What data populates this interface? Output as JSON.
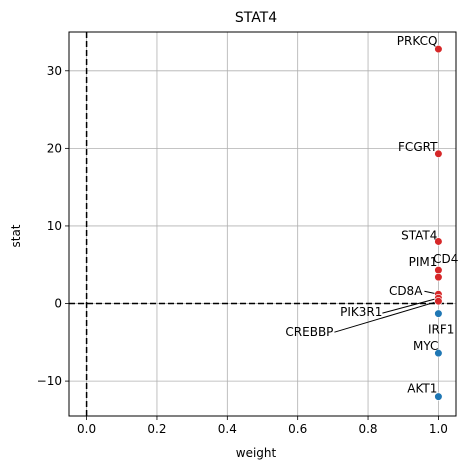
{
  "chart_data": {
    "type": "scatter",
    "title": "STAT4",
    "xlabel": "weight",
    "ylabel": "stat",
    "xlim": [
      -0.05,
      1.05
    ],
    "ylim": [
      -14.5,
      35
    ],
    "xticks": [
      0.0,
      0.2,
      0.4,
      0.6,
      0.8,
      1.0
    ],
    "xtick_labels": [
      "0.0",
      "0.2",
      "0.4",
      "0.6",
      "0.8",
      "1.0"
    ],
    "yticks": [
      -10,
      0,
      10,
      20,
      30
    ],
    "ytick_labels": [
      "−10",
      "0",
      "10",
      "20",
      "30"
    ],
    "grid": true,
    "reference_lines": {
      "x": 0,
      "y": 0,
      "style": "dashed"
    },
    "colors": {
      "positive": "#d62728",
      "negative": "#1f77b4"
    },
    "points": [
      {
        "x": 1.0,
        "y": 32.8,
        "color": "positive"
      },
      {
        "x": 1.0,
        "y": 19.3,
        "color": "positive"
      },
      {
        "x": 1.0,
        "y": 8.0,
        "color": "positive"
      },
      {
        "x": 1.0,
        "y": 4.3,
        "color": "positive"
      },
      {
        "x": 1.0,
        "y": 3.4,
        "color": "positive"
      },
      {
        "x": 1.0,
        "y": 1.2,
        "color": "positive"
      },
      {
        "x": 1.0,
        "y": 0.7,
        "color": "positive"
      },
      {
        "x": 1.0,
        "y": 0.3,
        "color": "positive"
      },
      {
        "x": 1.0,
        "y": -1.3,
        "color": "negative"
      },
      {
        "x": 1.0,
        "y": -6.4,
        "color": "negative"
      },
      {
        "x": 1.0,
        "y": -12.0,
        "color": "negative"
      }
    ],
    "annotations": [
      {
        "text": "PRKCQ"
      },
      {
        "text": "FCGRT"
      },
      {
        "text": "STAT4"
      },
      {
        "text": "PIM1"
      },
      {
        "text": "CD4"
      },
      {
        "text": "CD8A"
      },
      {
        "text": "PIK3R1"
      },
      {
        "text": "CREBBP"
      },
      {
        "text": "IRF1"
      },
      {
        "text": "MYC"
      },
      {
        "text": "AKT1"
      }
    ]
  }
}
